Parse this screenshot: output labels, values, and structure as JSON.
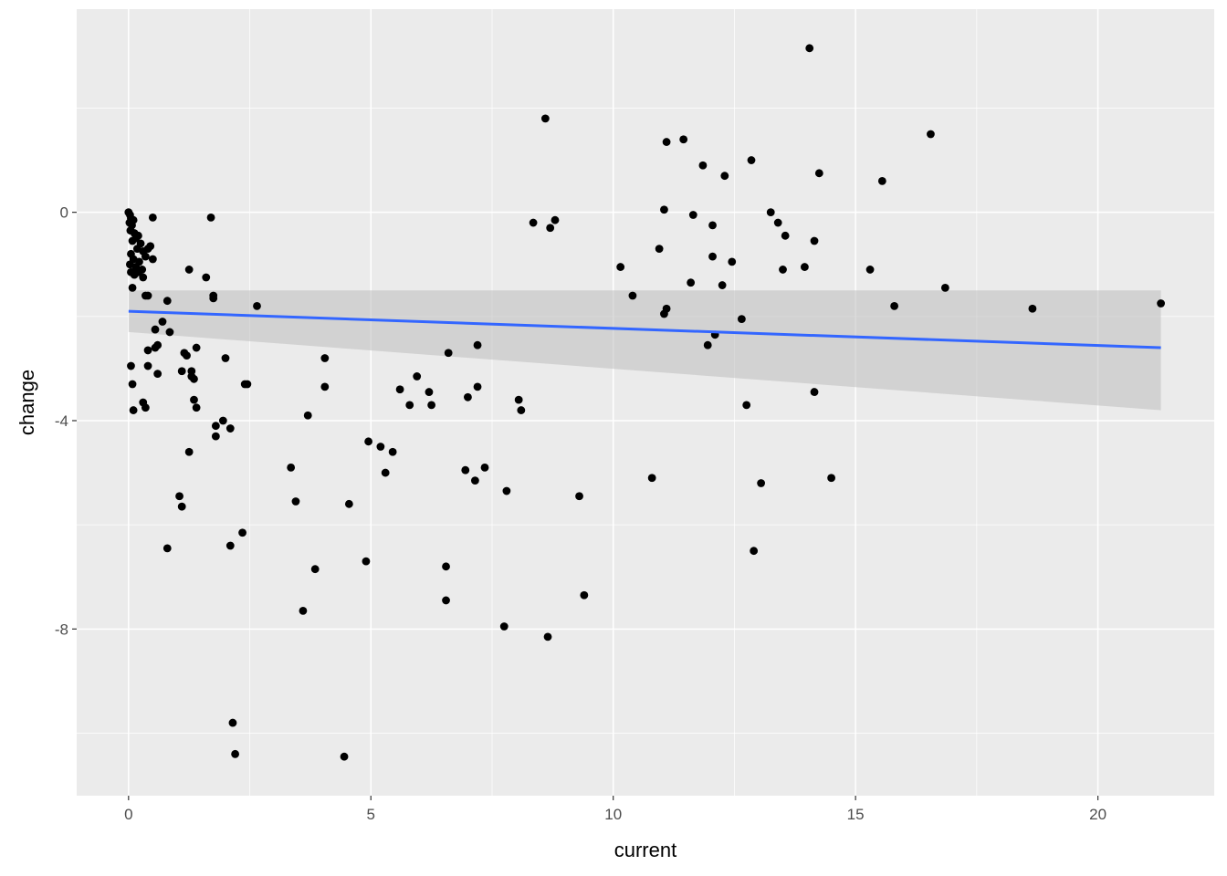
{
  "chart_data": {
    "type": "scatter",
    "title": "",
    "xlabel": "current",
    "ylabel": "change",
    "xlim": [
      -1.07,
      22.4
    ],
    "ylim": [
      -11.2,
      3.9
    ],
    "x_ticks": [
      0,
      5,
      10,
      15,
      20
    ],
    "x_tick_labels": [
      "0",
      "5",
      "10",
      "15",
      "20"
    ],
    "y_ticks": [
      0,
      -4,
      -8
    ],
    "y_tick_labels": [
      "0",
      "-4",
      "-8"
    ],
    "x_minor_ticks": [
      2.5,
      7.5,
      12.5,
      17.5
    ],
    "y_minor_ticks": [
      2,
      -2,
      -6,
      -10
    ],
    "grid": true,
    "background": "#ebebeb",
    "grid_color": "#ffffff",
    "point_color": "#000000",
    "trend_color": "#3366ff",
    "ribbon_color": "#bebebe",
    "points": [
      [
        0,
        0
      ],
      [
        0.03,
        -0.05
      ],
      [
        0.05,
        -0.12
      ],
      [
        0.02,
        -0.2
      ],
      [
        0.07,
        -0.25
      ],
      [
        0.1,
        -0.15
      ],
      [
        0.04,
        -0.35
      ],
      [
        0.12,
        -0.4
      ],
      [
        0.15,
        -0.5
      ],
      [
        0.08,
        -0.55
      ],
      [
        0.2,
        -0.45
      ],
      [
        0.25,
        -0.6
      ],
      [
        0.18,
        -0.7
      ],
      [
        0.3,
        -0.75
      ],
      [
        0.05,
        -0.8
      ],
      [
        0.1,
        -0.9
      ],
      [
        0.22,
        -0.95
      ],
      [
        0.03,
        -1.0
      ],
      [
        0.15,
        -1.05
      ],
      [
        0.35,
        -0.85
      ],
      [
        0.4,
        -0.7
      ],
      [
        0.45,
        -0.65
      ],
      [
        0.28,
        -1.1
      ],
      [
        0.05,
        -1.15
      ],
      [
        0.12,
        -1.2
      ],
      [
        0.2,
        -1.15
      ],
      [
        0.5,
        -0.1
      ],
      [
        0.5,
        -0.9
      ],
      [
        0.3,
        -1.25
      ],
      [
        0.08,
        -1.45
      ],
      [
        0.05,
        -2.95
      ],
      [
        0.08,
        -3.3
      ],
      [
        0.1,
        -3.8
      ],
      [
        0.3,
        -3.65
      ],
      [
        0.35,
        -3.75
      ],
      [
        0.35,
        -1.6
      ],
      [
        0.4,
        -1.6
      ],
      [
        0.4,
        -2.65
      ],
      [
        0.4,
        -2.95
      ],
      [
        0.55,
        -2.6
      ],
      [
        0.55,
        -2.25
      ],
      [
        0.6,
        -2.55
      ],
      [
        0.6,
        -3.1
      ],
      [
        0.7,
        -2.1
      ],
      [
        0.8,
        -1.7
      ],
      [
        0.85,
        -2.3
      ],
      [
        0.8,
        -6.45
      ],
      [
        1.05,
        -5.45
      ],
      [
        1.1,
        -5.65
      ],
      [
        1.1,
        -3.05
      ],
      [
        1.15,
        -2.7
      ],
      [
        1.2,
        -2.75
      ],
      [
        1.25,
        -1.1
      ],
      [
        1.25,
        -4.6
      ],
      [
        1.3,
        -3.05
      ],
      [
        1.3,
        -3.15
      ],
      [
        1.35,
        -3.2
      ],
      [
        1.35,
        -3.6
      ],
      [
        1.4,
        -2.6
      ],
      [
        1.4,
        -3.75
      ],
      [
        1.6,
        -1.25
      ],
      [
        1.7,
        -0.1
      ],
      [
        1.75,
        -1.6
      ],
      [
        1.75,
        -1.65
      ],
      [
        1.8,
        -4.1
      ],
      [
        1.8,
        -4.3
      ],
      [
        1.95,
        -4.0
      ],
      [
        2.0,
        -2.8
      ],
      [
        2.1,
        -4.15
      ],
      [
        2.1,
        -6.4
      ],
      [
        2.15,
        -9.8
      ],
      [
        2.2,
        -10.4
      ],
      [
        2.35,
        -6.15
      ],
      [
        2.4,
        -3.3
      ],
      [
        2.45,
        -3.3
      ],
      [
        2.65,
        -1.8
      ],
      [
        3.35,
        -4.9
      ],
      [
        3.45,
        -5.55
      ],
      [
        3.6,
        -7.65
      ],
      [
        3.7,
        -3.9
      ],
      [
        3.85,
        -6.85
      ],
      [
        4.05,
        -2.8
      ],
      [
        4.05,
        -3.35
      ],
      [
        4.45,
        -10.45
      ],
      [
        4.55,
        -5.6
      ],
      [
        4.9,
        -6.7
      ],
      [
        4.95,
        -4.4
      ],
      [
        5.2,
        -4.5
      ],
      [
        5.3,
        -5.0
      ],
      [
        5.45,
        -4.6
      ],
      [
        5.6,
        -3.4
      ],
      [
        5.8,
        -3.7
      ],
      [
        5.95,
        -3.15
      ],
      [
        6.2,
        -3.45
      ],
      [
        6.25,
        -3.7
      ],
      [
        6.55,
        -6.8
      ],
      [
        6.55,
        -7.45
      ],
      [
        6.6,
        -2.7
      ],
      [
        6.95,
        -4.95
      ],
      [
        7.0,
        -3.55
      ],
      [
        7.15,
        -5.15
      ],
      [
        7.2,
        -3.35
      ],
      [
        7.2,
        -2.55
      ],
      [
        7.35,
        -4.9
      ],
      [
        7.75,
        -7.95
      ],
      [
        7.8,
        -5.35
      ],
      [
        8.05,
        -3.6
      ],
      [
        8.1,
        -3.8
      ],
      [
        8.35,
        -0.2
      ],
      [
        8.6,
        1.8
      ],
      [
        8.65,
        -8.15
      ],
      [
        8.7,
        -0.3
      ],
      [
        8.8,
        -0.15
      ],
      [
        9.3,
        -5.45
      ],
      [
        9.4,
        -7.35
      ],
      [
        10.15,
        -1.05
      ],
      [
        10.4,
        -1.6
      ],
      [
        10.8,
        -5.1
      ],
      [
        10.95,
        -0.7
      ],
      [
        11.05,
        0.05
      ],
      [
        11.05,
        -1.95
      ],
      [
        11.1,
        -1.85
      ],
      [
        11.1,
        1.35
      ],
      [
        11.45,
        1.4
      ],
      [
        11.6,
        -1.35
      ],
      [
        11.65,
        -0.05
      ],
      [
        11.85,
        0.9
      ],
      [
        11.95,
        -2.55
      ],
      [
        12.05,
        -0.25
      ],
      [
        12.05,
        -0.85
      ],
      [
        12.1,
        -2.35
      ],
      [
        12.25,
        -1.4
      ],
      [
        12.3,
        0.7
      ],
      [
        12.45,
        -0.95
      ],
      [
        12.65,
        -2.05
      ],
      [
        12.75,
        -3.7
      ],
      [
        12.85,
        1.0
      ],
      [
        12.9,
        -6.5
      ],
      [
        13.05,
        -5.2
      ],
      [
        13.25,
        0.0
      ],
      [
        13.4,
        -0.2
      ],
      [
        13.5,
        -1.1
      ],
      [
        13.55,
        -0.45
      ],
      [
        13.95,
        -1.05
      ],
      [
        14.05,
        3.15
      ],
      [
        14.15,
        -0.55
      ],
      [
        14.15,
        -3.45
      ],
      [
        14.25,
        0.75
      ],
      [
        14.5,
        -5.1
      ],
      [
        15.3,
        -1.1
      ],
      [
        15.55,
        0.6
      ],
      [
        15.8,
        -1.8
      ],
      [
        16.55,
        1.5
      ],
      [
        16.85,
        -1.45
      ],
      [
        18.65,
        -1.85
      ],
      [
        21.3,
        -1.75
      ]
    ],
    "trend": {
      "x": [
        0,
        21.3
      ],
      "y": [
        -1.9,
        -2.6
      ],
      "ci_low": [
        -2.3,
        -3.8
      ],
      "ci_high": [
        -1.5,
        -1.5
      ]
    }
  }
}
